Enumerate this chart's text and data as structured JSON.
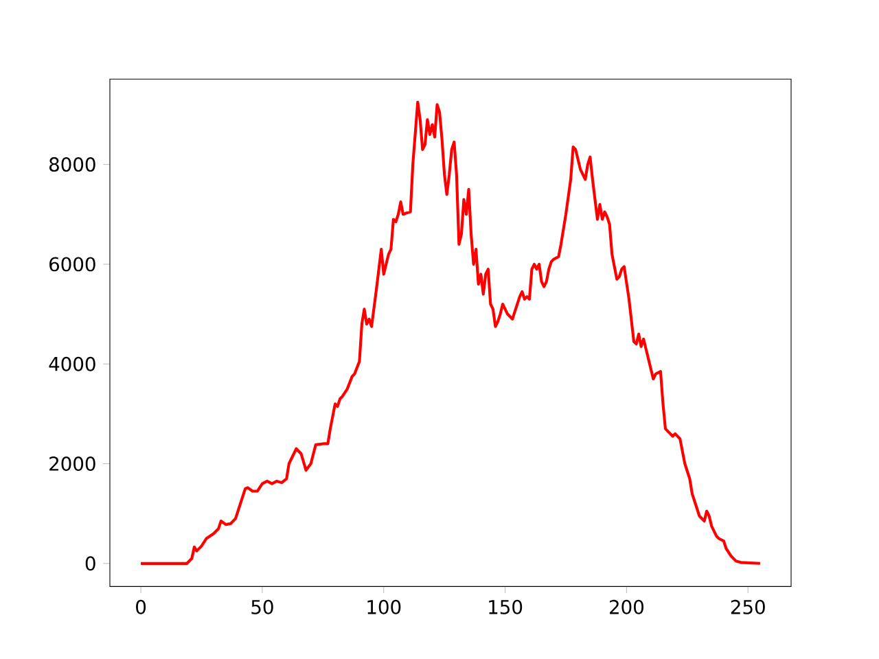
{
  "chart_data": {
    "type": "line",
    "color": "#ff0000",
    "line_style": "solid",
    "marker": "none",
    "grid": false,
    "x": [
      0,
      19,
      21,
      22,
      23,
      25,
      27,
      30,
      32,
      33,
      35,
      37,
      39,
      41,
      43,
      44,
      46,
      48,
      50,
      52,
      54,
      56,
      58,
      60,
      61,
      63,
      64,
      66,
      68,
      70,
      72,
      75,
      77,
      78,
      80,
      81,
      82,
      83,
      85,
      87,
      88,
      90,
      91,
      92,
      93,
      94,
      95,
      97,
      99,
      100,
      101,
      102,
      103,
      104,
      105,
      106,
      107,
      108,
      109,
      111,
      112,
      114,
      115,
      116,
      117,
      118,
      119,
      120,
      121,
      122,
      123,
      124,
      125,
      126,
      127,
      128,
      129,
      130,
      131,
      132,
      133,
      134,
      135,
      136,
      137,
      138,
      139,
      140,
      141,
      142,
      143,
      144,
      145,
      146,
      147,
      148,
      149,
      150,
      151,
      152,
      153,
      154,
      155,
      156,
      157,
      158,
      159,
      160,
      161,
      162,
      163,
      164,
      165,
      166,
      167,
      168,
      169,
      170,
      172,
      173,
      174,
      175,
      177,
      178,
      179,
      181,
      183,
      184,
      185,
      186,
      188,
      189,
      190,
      191,
      192,
      193,
      194,
      196,
      197,
      198,
      199,
      201,
      203,
      204,
      205,
      206,
      207,
      208,
      209,
      211,
      212,
      214,
      215,
      216,
      218,
      219,
      220,
      221,
      222,
      223,
      224,
      226,
      227,
      229,
      230,
      231,
      232,
      233,
      234,
      235,
      237,
      238,
      240,
      241,
      243,
      245,
      247,
      255
    ],
    "values": [
      0,
      0,
      100,
      330,
      250,
      350,
      500,
      600,
      700,
      850,
      780,
      800,
      900,
      1200,
      1500,
      1520,
      1450,
      1450,
      1600,
      1650,
      1600,
      1650,
      1620,
      1700,
      2000,
      2200,
      2300,
      2200,
      1870,
      2000,
      2380,
      2400,
      2400,
      2700,
      3200,
      3150,
      3300,
      3350,
      3500,
      3750,
      3800,
      4050,
      4800,
      5100,
      4800,
      4900,
      4750,
      5500,
      6300,
      5800,
      6000,
      6200,
      6300,
      6900,
      6850,
      7000,
      7250,
      7000,
      7020,
      7050,
      8000,
      9250,
      8900,
      8300,
      8400,
      8900,
      8600,
      8800,
      8550,
      9200,
      9050,
      8500,
      7800,
      7400,
      7800,
      8300,
      8450,
      7800,
      6400,
      6600,
      7300,
      7000,
      7500,
      6600,
      6000,
      6300,
      5600,
      5800,
      5400,
      5800,
      5900,
      5200,
      5100,
      4750,
      4850,
      5000,
      5200,
      5100,
      5000,
      4950,
      4900,
      5050,
      5200,
      5350,
      5450,
      5300,
      5350,
      5300,
      5900,
      6000,
      5900,
      6000,
      5650,
      5550,
      5650,
      5900,
      6050,
      6100,
      6150,
      6400,
      6700,
      7000,
      7700,
      8350,
      8300,
      7900,
      7700,
      8000,
      8150,
      7700,
      6900,
      7200,
      6900,
      7050,
      6950,
      6800,
      6200,
      5700,
      5750,
      5900,
      5950,
      5300,
      4450,
      4400,
      4600,
      4350,
      4500,
      4300,
      4100,
      3700,
      3800,
      3850,
      3200,
      2700,
      2600,
      2550,
      2600,
      2550,
      2500,
      2250,
      2000,
      1700,
      1400,
      1100,
      950,
      900,
      850,
      1050,
      950,
      750,
      550,
      500,
      450,
      300,
      150,
      50,
      20,
      0
    ],
    "xlim": [
      -12.75,
      267.75
    ],
    "ylim": [
      -462.5,
      9712.5
    ],
    "xticks": [
      0,
      50,
      100,
      150,
      200,
      250
    ],
    "yticks": [
      0,
      2000,
      4000,
      6000,
      8000
    ]
  }
}
